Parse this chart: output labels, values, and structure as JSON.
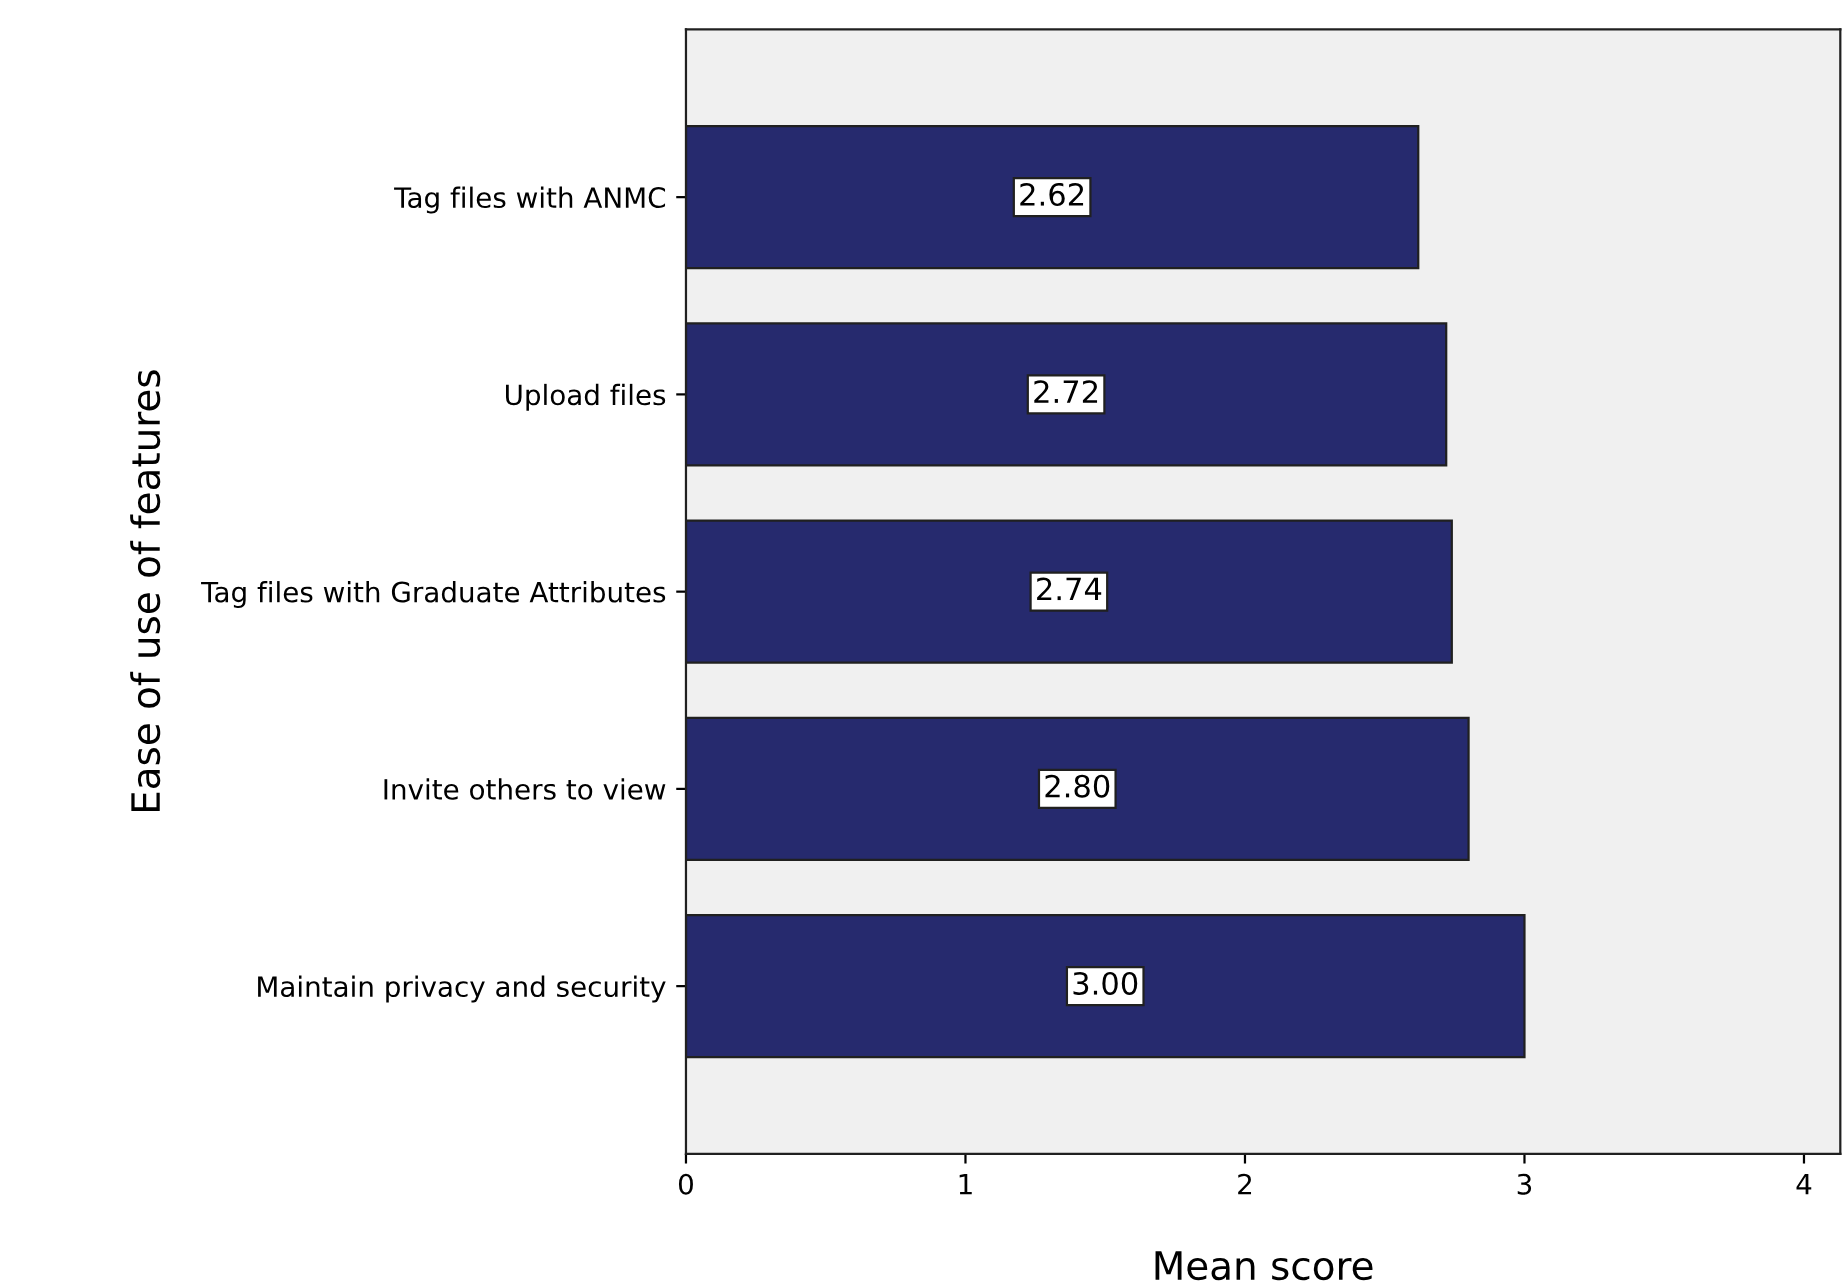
{
  "chart_data": {
    "type": "bar",
    "orientation": "horizontal",
    "xlabel": "Mean score",
    "ylabel": "Ease of use of features",
    "categories": [
      "Tag files with ANMC",
      "Upload files",
      "Tag files with Graduate Attributes",
      "Invite others to view",
      "Maintain privacy and security"
    ],
    "values": [
      2.62,
      2.72,
      2.74,
      2.8,
      3.0
    ],
    "value_labels": [
      "2.62",
      "2.72",
      "2.74",
      "2.80",
      "3.00"
    ],
    "color": "#262a6e",
    "xlim": [
      0,
      4.13
    ],
    "xticks": [
      0,
      1,
      2,
      3,
      4
    ],
    "grid": false,
    "legend": false
  }
}
